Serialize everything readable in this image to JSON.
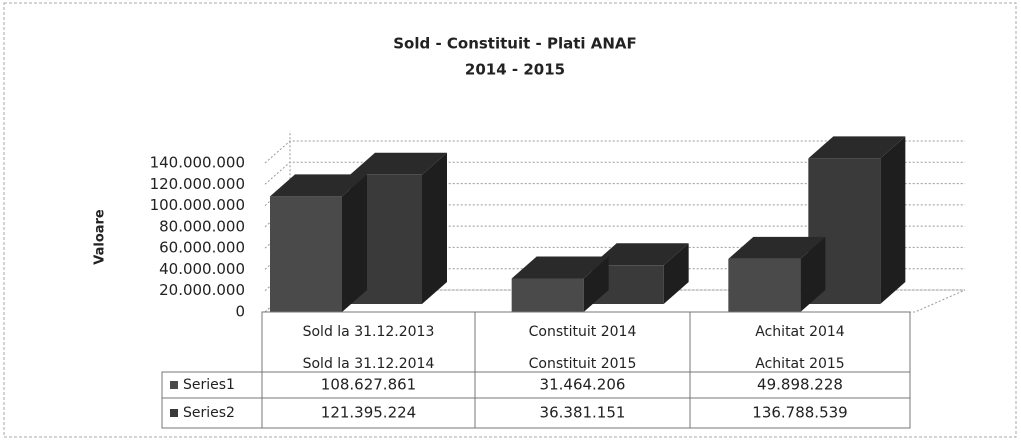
{
  "chart_data": {
    "type": "bar3d",
    "title": "Sold - Constituit - Plati ANAF",
    "subtitle": "2014 - 2015",
    "y_label": "Valoare",
    "categories": [
      [
        "Sold la 31.12.2013",
        "Sold la 31.12.2014"
      ],
      [
        "Constituit 2014",
        "Constituit 2015"
      ],
      [
        "Achitat 2014",
        "Achitat 2015"
      ]
    ],
    "series": [
      {
        "name": "Series1",
        "color": "#4a4a4a",
        "values": [
          108627861,
          31464206,
          49898228
        ],
        "value_labels": [
          "108.627.861",
          "31.464.206",
          "49.898.228"
        ]
      },
      {
        "name": "Series2",
        "color": "#3a3a3a",
        "values": [
          121395224,
          36381151,
          136788539
        ],
        "value_labels": [
          "121.395.224",
          "36.381.151",
          "136.788.539"
        ]
      }
    ],
    "ylim": [
      0,
      140000000
    ],
    "yticks": [
      0,
      {
        "value": 20000000,
        "label": "20.000.000"
      },
      {
        "value": 40000000,
        "label": "40.000.000"
      },
      {
        "value": 60000000,
        "label": "60.000.000"
      },
      {
        "value": 80000000,
        "label": "80.000.000"
      },
      {
        "value": 100000000,
        "label": "100.000.000"
      },
      {
        "value": 120000000,
        "label": "120.000.000"
      },
      {
        "value": 140000000,
        "label": "140.000.000"
      }
    ],
    "grid": true
  }
}
